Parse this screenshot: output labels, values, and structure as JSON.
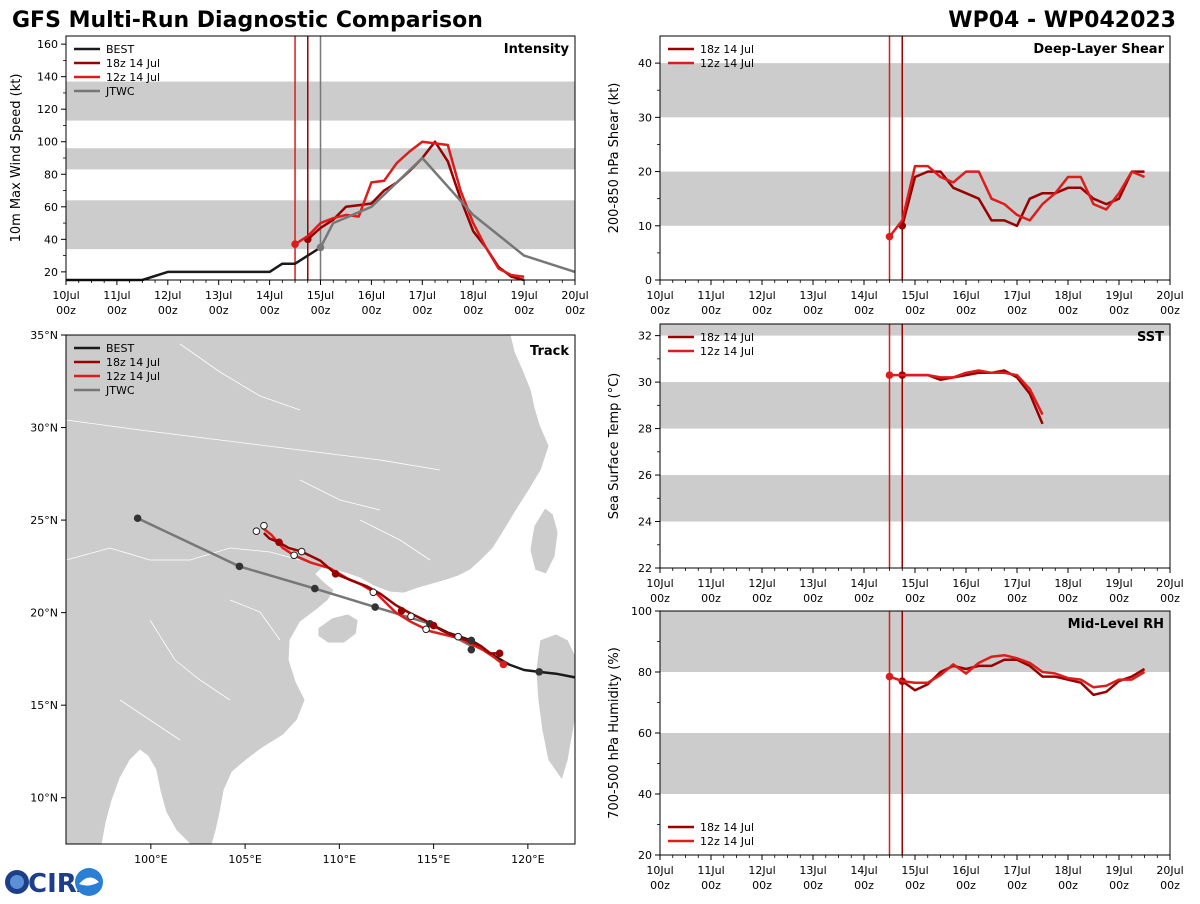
{
  "header": {
    "title": "GFS Multi-Run Diagnostic Comparison",
    "storm": "WP04 - WP042023"
  },
  "logo": {
    "text": "CIRA"
  },
  "colors": {
    "best": "#1a1a1a",
    "run18": "#990000",
    "run12": "#dd1c1c",
    "jtwc": "#777777",
    "band": "#cccccc",
    "land": "#cccccc",
    "border": "#ffffff"
  },
  "legend": {
    "best": "BEST",
    "run18": "18z 14 Jul",
    "run12": "12z 14 Jul",
    "jtwc": "JTWC"
  },
  "time_axis": {
    "ticks": [
      {
        "day": "10Jul",
        "hour": "00z"
      },
      {
        "day": "11Jul",
        "hour": "00z"
      },
      {
        "day": "12Jul",
        "hour": "00z"
      },
      {
        "day": "13Jul",
        "hour": "00z"
      },
      {
        "day": "14Jul",
        "hour": "00z"
      },
      {
        "day": "15Jul",
        "hour": "00z"
      },
      {
        "day": "16Jul",
        "hour": "00z"
      },
      {
        "day": "17Jul",
        "hour": "00z"
      },
      {
        "day": "18Jul",
        "hour": "00z"
      },
      {
        "day": "19Jul",
        "hour": "00z"
      },
      {
        "day": "20Jul",
        "hour": "00z"
      }
    ],
    "range_days": [
      0,
      10
    ],
    "init18": 4.75,
    "init12": 4.5,
    "jtwc_time": 5.0
  },
  "chart_data": [
    {
      "id": "intensity",
      "type": "line",
      "title": "Intensity",
      "ylabel": "10m Max Wind Speed (kt)",
      "ylim": [
        15,
        165
      ],
      "yticks": [
        20,
        40,
        60,
        80,
        100,
        120,
        140,
        160
      ],
      "bands": [
        [
          34,
          64
        ],
        [
          83,
          96
        ],
        [
          113,
          137
        ]
      ],
      "series": [
        {
          "name": "BEST",
          "x": [
            0,
            0.5,
            1,
            1.5,
            2,
            2.5,
            3,
            3.5,
            4,
            4.25,
            4.5,
            4.75,
            5.0
          ],
          "y": [
            15,
            15,
            15,
            15,
            20,
            20,
            20,
            20,
            20,
            25,
            25,
            30,
            35
          ]
        },
        {
          "name": "18z 14 Jul",
          "x": [
            4.75,
            5.0,
            5.25,
            5.5,
            5.75,
            6.0,
            6.25,
            6.5,
            6.75,
            7.0,
            7.25,
            7.5,
            7.75,
            8.0,
            8.25,
            8.5,
            8.75,
            9.0
          ],
          "y": [
            40,
            47,
            52,
            60,
            61,
            62,
            70,
            75,
            82,
            90,
            100,
            88,
            65,
            45,
            35,
            23,
            17,
            15
          ]
        },
        {
          "name": "12z 14 Jul",
          "x": [
            4.5,
            4.75,
            5.0,
            5.25,
            5.5,
            5.75,
            6.0,
            6.25,
            6.5,
            6.75,
            7.0,
            7.25,
            7.5,
            7.75,
            8.0,
            8.25,
            8.5,
            8.75,
            9.0
          ],
          "y": [
            37,
            42,
            50,
            53,
            55,
            54,
            75,
            76,
            87,
            94,
            100,
            99,
            98,
            70,
            50,
            35,
            22,
            18,
            17
          ]
        },
        {
          "name": "JTWC",
          "x": [
            5.0,
            5.25,
            6.0,
            7.0,
            8.0,
            9.0,
            10.0
          ],
          "y": [
            35,
            50,
            60,
            90,
            55,
            30,
            20
          ]
        }
      ]
    },
    {
      "id": "shear",
      "type": "line",
      "title": "Deep-Layer Shear",
      "ylabel": "200-850 hPa Shear (kt)",
      "ylim": [
        0,
        45
      ],
      "yticks": [
        0,
        10,
        20,
        30,
        40
      ],
      "bands": [
        [
          10,
          20
        ],
        [
          30,
          40
        ]
      ],
      "series": [
        {
          "name": "18z 14 Jul",
          "x": [
            4.75,
            5.0,
            5.25,
            5.5,
            5.75,
            6.0,
            6.25,
            6.5,
            6.75,
            7.0,
            7.25,
            7.5,
            7.75,
            8.0,
            8.25,
            8.5,
            8.75,
            9.0,
            9.25,
            9.5
          ],
          "y": [
            10,
            19,
            20,
            20,
            17,
            16,
            15,
            11,
            11,
            10,
            15,
            16,
            16,
            17,
            17,
            15,
            14,
            15,
            20,
            20
          ]
        },
        {
          "name": "12z 14 Jul",
          "x": [
            4.5,
            4.75,
            5.0,
            5.25,
            5.5,
            5.75,
            6.0,
            6.25,
            6.5,
            6.75,
            7.0,
            7.25,
            7.5,
            7.75,
            8.0,
            8.25,
            8.5,
            8.75,
            9.0,
            9.25,
            9.5
          ],
          "y": [
            8,
            11,
            21,
            21,
            19,
            18,
            20,
            20,
            15,
            14,
            12,
            11,
            14,
            16,
            19,
            19,
            14,
            13,
            16,
            20,
            19
          ]
        }
      ]
    },
    {
      "id": "sst",
      "type": "line",
      "title": "SST",
      "ylabel": "Sea Surface Temp (°C)",
      "ylim": [
        22,
        32.5
      ],
      "yticks": [
        22,
        24,
        26,
        28,
        30,
        32
      ],
      "bands": [
        [
          24,
          26
        ],
        [
          28,
          30
        ],
        [
          32,
          33
        ]
      ],
      "series": [
        {
          "name": "18z 14 Jul",
          "x": [
            4.75,
            5.0,
            5.25,
            5.5,
            5.75,
            6.0,
            6.25,
            6.5,
            6.75,
            7.0,
            7.25,
            7.5
          ],
          "y": [
            30.3,
            30.3,
            30.3,
            30.1,
            30.2,
            30.3,
            30.4,
            30.4,
            30.5,
            30.2,
            29.5,
            28.2
          ]
        },
        {
          "name": "12z 14 Jul",
          "x": [
            4.5,
            4.75,
            5.0,
            5.25,
            5.5,
            5.75,
            6.0,
            6.25,
            6.5,
            6.75,
            7.0,
            7.25,
            7.5
          ],
          "y": [
            30.3,
            30.3,
            30.3,
            30.3,
            30.2,
            30.2,
            30.4,
            30.5,
            30.4,
            30.4,
            30.3,
            29.7,
            28.6
          ]
        }
      ]
    },
    {
      "id": "rh",
      "type": "line",
      "title": "Mid-Level RH",
      "ylabel": "700-500 hPa Humidity (%)",
      "ylim": [
        20,
        100
      ],
      "yticks": [
        20,
        40,
        60,
        80,
        100
      ],
      "bands": [
        [
          40,
          60
        ],
        [
          80,
          100
        ]
      ],
      "series": [
        {
          "name": "18z 14 Jul",
          "x": [
            4.75,
            5.0,
            5.25,
            5.5,
            5.75,
            6.0,
            6.25,
            6.5,
            6.75,
            7.0,
            7.25,
            7.5,
            7.75,
            8.0,
            8.25,
            8.5,
            8.75,
            9.0,
            9.25,
            9.5
          ],
          "y": [
            77,
            74,
            76,
            80,
            82,
            81,
            82,
            82,
            84,
            84,
            82,
            78.5,
            78.5,
            77.5,
            76.5,
            72.5,
            73.5,
            77,
            78.5,
            81
          ]
        },
        {
          "name": "12z 14 Jul",
          "x": [
            4.5,
            4.75,
            5.0,
            5.25,
            5.5,
            5.75,
            6.0,
            6.25,
            6.5,
            6.75,
            7.0,
            7.25,
            7.5,
            7.75,
            8.0,
            8.25,
            8.5,
            8.75,
            9.0,
            9.25,
            9.5
          ],
          "y": [
            78.5,
            77,
            76.5,
            76.5,
            79,
            82.5,
            79.5,
            83,
            85,
            85.5,
            84.5,
            83,
            80,
            79.5,
            78,
            77.5,
            75,
            75.5,
            77.5,
            77.5,
            80
          ]
        }
      ]
    },
    {
      "id": "track",
      "type": "scatter",
      "title": "Track",
      "lon_range": [
        95.5,
        122.5
      ],
      "lat_range": [
        7.5,
        35
      ],
      "lon_ticks": [
        {
          "v": 100,
          "label": "100°E"
        },
        {
          "v": 105,
          "label": "105°E"
        },
        {
          "v": 110,
          "label": "110°E"
        },
        {
          "v": 115,
          "label": "115°E"
        },
        {
          "v": 120,
          "label": "120°E"
        }
      ],
      "lat_ticks": [
        {
          "v": 10,
          "label": "10°N"
        },
        {
          "v": 15,
          "label": "15°N"
        },
        {
          "v": 20,
          "label": "20°N"
        },
        {
          "v": 25,
          "label": "25°N"
        },
        {
          "v": 30,
          "label": "30°N"
        },
        {
          "v": 35,
          "label": "35°N"
        }
      ],
      "series": [
        {
          "name": "BEST",
          "lon": [
            122.5,
            121.5,
            120.6,
            119.8,
            119.0,
            118.5,
            118.0,
            117.5,
            117.0,
            116.4,
            115.8,
            115.0
          ],
          "lat": [
            16.5,
            16.7,
            16.8,
            16.9,
            17.2,
            17.5,
            17.8,
            18.2,
            18.5,
            18.7,
            18.9,
            19.3
          ],
          "markers": [
            {
              "lon": 120.6,
              "lat": 16.8
            },
            {
              "lon": 117.0,
              "lat": 18.5
            }
          ]
        },
        {
          "name": "18z 14 Jul",
          "lon": [
            118.5,
            118.0,
            117.5,
            116.8,
            116.2,
            115.5,
            115.0,
            114.5,
            113.7,
            113.0,
            112.2,
            111.5,
            110.5,
            109.8,
            109.0,
            108.0,
            107.3,
            106.8,
            106.3,
            106.0
          ],
          "lat": [
            17.8,
            17.8,
            18.2,
            18.5,
            18.7,
            19.0,
            19.3,
            19.6,
            20.0,
            20.4,
            21.0,
            21.4,
            21.8,
            22.1,
            22.8,
            23.3,
            23.5,
            23.8,
            24.0,
            24.3
          ],
          "markers": [
            {
              "lon": 118.5,
              "lat": 17.8
            },
            {
              "lon": 115.0,
              "lat": 19.3
            },
            {
              "lon": 113.3,
              "lat": 20.1
            },
            {
              "lon": 109.8,
              "lat": 22.1
            },
            {
              "lon": 106.8,
              "lat": 23.8
            }
          ]
        },
        {
          "name": "12z 14 Jul",
          "lon": [
            118.7,
            118.2,
            117.6,
            117.0,
            116.4,
            115.6,
            114.8,
            113.8,
            113.0,
            112.0,
            111.2,
            110.5,
            109.5,
            108.5,
            107.6,
            107.0,
            106.4,
            105.9
          ],
          "lat": [
            17.2,
            17.6,
            18.0,
            18.3,
            18.6,
            18.8,
            19.0,
            19.5,
            20.0,
            21.0,
            21.5,
            21.8,
            22.4,
            22.7,
            23.1,
            23.5,
            24.2,
            24.6
          ],
          "markers": [
            {
              "lon": 118.7,
              "lat": 17.2
            },
            {
              "lon": 116.3,
              "lat": 18.7
            },
            {
              "lon": 114.6,
              "lat": 19.1
            },
            {
              "lon": 113.8,
              "lat": 19.8
            },
            {
              "lon": 111.8,
              "lat": 21.1
            },
            {
              "lon": 108.0,
              "lat": 23.3
            },
            {
              "lon": 107.6,
              "lat": 23.1
            },
            {
              "lon": 106.0,
              "lat": 24.7
            },
            {
              "lon": 105.6,
              "lat": 24.4
            }
          ]
        },
        {
          "name": "JTWC",
          "lon": [
            117.0,
            114.8,
            111.9,
            108.7,
            104.7,
            99.3
          ],
          "lat": [
            18.2,
            19.4,
            20.3,
            21.3,
            22.5,
            25.1
          ],
          "markers": [
            {
              "lon": 117.0,
              "lat": 18.0
            },
            {
              "lon": 114.8,
              "lat": 19.4
            },
            {
              "lon": 111.9,
              "lat": 20.3
            },
            {
              "lon": 108.7,
              "lat": 21.3
            },
            {
              "lon": 104.7,
              "lat": 22.5
            },
            {
              "lon": 99.3,
              "lat": 25.1
            }
          ]
        }
      ]
    }
  ]
}
